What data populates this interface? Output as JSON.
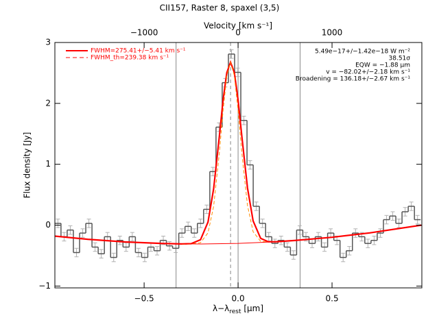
{
  "chart_data": {
    "type": "spectrum",
    "title": "CII157, Raster 8, spaxel (3,5)",
    "x_label": {
      "main": "λ−λ",
      "sub": "rest",
      "unit": " [μm]"
    },
    "x2_label": "Velocity [km s⁻¹]",
    "y_label": "Flux density [Jy]",
    "xlim": [
      -0.975,
      0.978
    ],
    "xticks": [
      {
        "value": -0.5,
        "label": "−0.5"
      },
      {
        "value": 0,
        "label": "0.0"
      },
      {
        "value": 0.5,
        "label": "0.5"
      }
    ],
    "x2lim": [
      -1950,
      1956
    ],
    "x2ticks": [
      {
        "value": -1000,
        "label": "−1000"
      },
      0,
      1000
    ],
    "ylim": [
      -1.03,
      3.0
    ],
    "yticks": [
      {
        "value": -1,
        "label": "−1"
      },
      0,
      1,
      2,
      3
    ],
    "vlines": [
      -0.33,
      0,
      0.33
    ],
    "center_line": -0.04,
    "histogram": {
      "color": "#555555",
      "error_color": "#b0b0b0",
      "x": [
        -0.959,
        -0.926,
        -0.893,
        -0.86,
        -0.827,
        -0.794,
        -0.761,
        -0.728,
        -0.695,
        -0.662,
        -0.629,
        -0.596,
        -0.563,
        -0.53,
        -0.497,
        -0.464,
        -0.431,
        -0.398,
        -0.365,
        -0.332,
        -0.299,
        -0.266,
        -0.233,
        -0.2,
        -0.167,
        -0.134,
        -0.101,
        -0.068,
        -0.035,
        -0.002,
        0.031,
        0.064,
        0.097,
        0.13,
        0.163,
        0.196,
        0.229,
        0.262,
        0.295,
        0.328,
        0.361,
        0.394,
        0.427,
        0.46,
        0.493,
        0.526,
        0.559,
        0.592,
        0.625,
        0.658,
        0.691,
        0.724,
        0.757,
        0.79,
        0.823,
        0.856,
        0.889,
        0.922,
        0.955
      ],
      "values": [
        0.03,
        -0.19,
        -0.08,
        -0.45,
        -0.13,
        0.03,
        -0.36,
        -0.47,
        -0.19,
        -0.53,
        -0.25,
        -0.36,
        -0.19,
        -0.45,
        -0.53,
        -0.36,
        -0.42,
        -0.25,
        -0.34,
        -0.38,
        -0.13,
        -0.02,
        -0.13,
        0.03,
        0.26,
        0.88,
        1.61,
        2.34,
        2.81,
        2.51,
        1.72,
        0.99,
        0.31,
        0.03,
        -0.19,
        -0.3,
        -0.25,
        -0.36,
        -0.49,
        -0.08,
        -0.19,
        -0.3,
        -0.19,
        -0.36,
        -0.13,
        -0.25,
        -0.53,
        -0.42,
        -0.13,
        -0.19,
        -0.3,
        -0.25,
        -0.13,
        0.09,
        0.15,
        0.03,
        0.22,
        0.31,
        0.09
      ],
      "errors": [
        0.07,
        0.07,
        0.07,
        0.07,
        0.07,
        0.07,
        0.07,
        0.07,
        0.07,
        0.07,
        0.07,
        0.07,
        0.07,
        0.07,
        0.07,
        0.07,
        0.07,
        0.07,
        0.07,
        0.07,
        0.07,
        0.07,
        0.07,
        0.07,
        0.07,
        0.07,
        0.07,
        0.07,
        0.07,
        0.07,
        0.07,
        0.07,
        0.07,
        0.07,
        0.07,
        0.07,
        0.07,
        0.07,
        0.07,
        0.07,
        0.07,
        0.07,
        0.07,
        0.07,
        0.07,
        0.07,
        0.07,
        0.07,
        0.07,
        0.07,
        0.07,
        0.07,
        0.07,
        0.07,
        0.07,
        0.07,
        0.07,
        0.07,
        0.07
      ]
    },
    "series": [
      {
        "name": "FWHM=275.41+/−5.41 km s⁻¹",
        "color": "#ff0000",
        "style": "solid",
        "width": 2.2,
        "x": [
          -0.975,
          -0.8,
          -0.6,
          -0.4,
          -0.3,
          -0.25,
          -0.2,
          -0.16,
          -0.13,
          -0.1,
          -0.08,
          -0.06,
          -0.04,
          -0.02,
          0,
          0.02,
          0.05,
          0.08,
          0.12,
          0.16,
          0.2,
          0.3,
          0.5,
          0.7,
          0.975
        ],
        "values": [
          -0.18,
          -0.232,
          -0.276,
          -0.301,
          -0.308,
          -0.304,
          -0.24,
          0.052,
          0.6,
          1.45,
          2.05,
          2.505,
          2.676,
          2.508,
          2.056,
          1.459,
          0.613,
          0.07,
          -0.216,
          -0.272,
          -0.273,
          -0.252,
          -0.199,
          -0.127,
          0.0
        ]
      },
      {
        "name": "FWHM_th=239.38 km s⁻¹",
        "color": "#ff0000",
        "line_color": "#ff8c00",
        "style": "dashed",
        "width": 1,
        "x": [
          -0.3,
          -0.25,
          -0.2,
          -0.16,
          -0.13,
          -0.1,
          -0.08,
          -0.06,
          -0.04,
          -0.02,
          0,
          0.02,
          0.05,
          0.08,
          0.12,
          0.16
        ],
        "values": [
          -0.308,
          -0.308,
          -0.289,
          -0.126,
          0.312,
          1.176,
          1.88,
          2.453,
          2.676,
          2.456,
          1.886,
          1.185,
          0.325,
          -0.108,
          -0.265,
          -0.279
        ]
      },
      {
        "color": "#ff0000",
        "style": "solid",
        "width": 1,
        "x": [
          -0.975,
          -0.8,
          -0.6,
          -0.4,
          -0.2,
          0,
          0.2,
          0.4,
          0.6,
          0.8,
          0.975
        ],
        "values": [
          -0.18,
          -0.232,
          -0.276,
          -0.301,
          -0.31,
          -0.3,
          -0.273,
          -0.228,
          -0.165,
          -0.085,
          0.0
        ]
      }
    ],
    "annotations": [
      "5.49e−17+/−1.42e−18 W m⁻²",
      "38.51σ",
      "EQW = −1.88 μm",
      "v = −82.02+/−2.18 km s⁻¹",
      "Broadening = 136.18+/−2.67 km s⁻¹"
    ]
  }
}
